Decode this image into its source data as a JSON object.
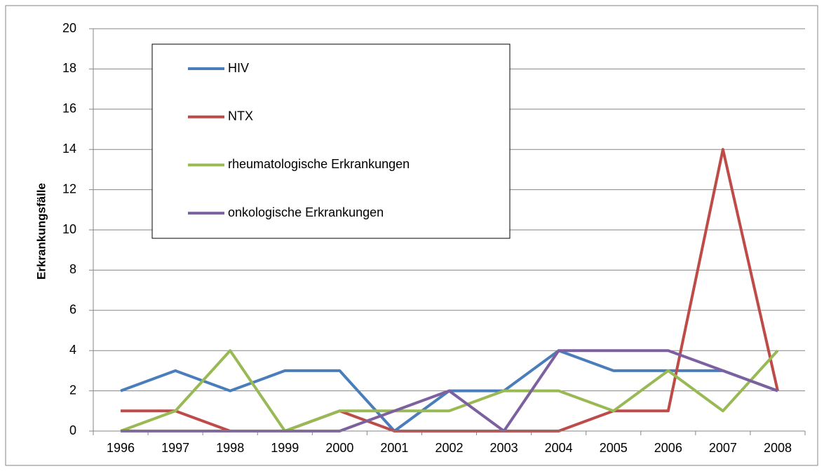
{
  "chart_data": {
    "type": "line",
    "y_label": "Erkrankungsfälle",
    "categories": [
      "1996",
      "1997",
      "1998",
      "1999",
      "2000",
      "2001",
      "2002",
      "2003",
      "2004",
      "2005",
      "2006",
      "2007",
      "2008"
    ],
    "series": [
      {
        "name": "HIV",
        "color": "#4a7ebb",
        "values": [
          2,
          3,
          2,
          3,
          3,
          0,
          2,
          2,
          4,
          3,
          3,
          3,
          2
        ]
      },
      {
        "name": "NTX",
        "color": "#be4b48",
        "values": [
          1,
          1,
          0,
          0,
          1,
          0,
          0,
          0,
          0,
          1,
          1,
          14,
          2
        ]
      },
      {
        "name": "rheumatologische Erkrankungen",
        "color": "#98b954",
        "values": [
          0,
          1,
          4,
          0,
          1,
          1,
          1,
          2,
          2,
          1,
          3,
          1,
          4
        ]
      },
      {
        "name": "onkologische Erkrankungen",
        "color": "#7d60a0",
        "values": [
          0,
          0,
          0,
          0,
          0,
          1,
          2,
          0,
          4,
          4,
          4,
          3,
          2
        ]
      }
    ],
    "ylim": [
      0,
      20
    ],
    "yticks": [
      0,
      2,
      4,
      6,
      8,
      10,
      12,
      14,
      16,
      18,
      20
    ],
    "grid": true
  }
}
